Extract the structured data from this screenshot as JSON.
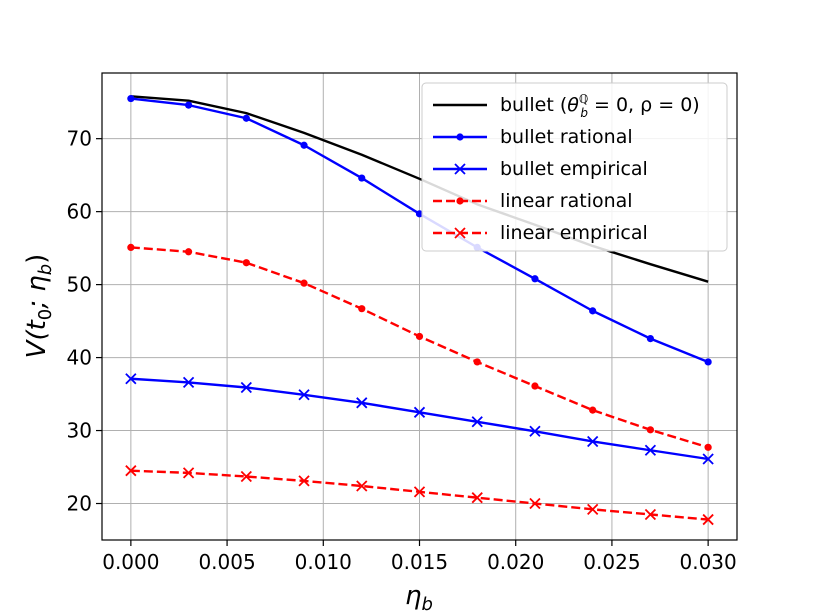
{
  "chart_data": {
    "type": "line",
    "title": "",
    "xlabel": "η",
    "xlabel_sub": "b",
    "ylabel": "V(t",
    "ylabel_sub1": "0",
    "ylabel_mid": "; η",
    "ylabel_sub2": "b",
    "ylabel_end": ")",
    "xlim": [
      -0.0015,
      0.0315
    ],
    "ylim": [
      15,
      79
    ],
    "xticks": [
      0.0,
      0.005,
      0.01,
      0.015,
      0.02,
      0.025,
      0.03
    ],
    "xtick_labels": [
      "0.000",
      "0.005",
      "0.010",
      "0.015",
      "0.020",
      "0.025",
      "0.030"
    ],
    "yticks": [
      20,
      30,
      40,
      50,
      60,
      70
    ],
    "ytick_labels": [
      "20",
      "30",
      "40",
      "50",
      "60",
      "70"
    ],
    "grid": true,
    "legend_position": "top-right",
    "x": [
      0.0,
      0.003,
      0.006,
      0.009,
      0.012,
      0.015,
      0.018,
      0.021,
      0.024,
      0.027,
      0.03
    ],
    "series": [
      {
        "name": "bullet (θ_b^Q = 0, ρ = 0)",
        "legend_text": "bullet (",
        "legend_theta": "θ",
        "legend_theta_sub": "b",
        "legend_theta_sup": "ℚ",
        "legend_tail": " = 0, ρ = 0)",
        "color": "#000000",
        "linestyle": "solid",
        "marker": "none",
        "values": [
          75.8,
          75.2,
          73.5,
          70.8,
          67.8,
          64.5,
          61.0,
          58.2,
          55.3,
          52.8,
          50.4
        ]
      },
      {
        "name": "bullet rational",
        "legend_text": "bullet rational",
        "color": "#0000ff",
        "linestyle": "solid",
        "marker": "dot",
        "values": [
          75.5,
          74.6,
          72.8,
          69.1,
          64.6,
          59.7,
          55.1,
          50.8,
          46.4,
          42.6,
          39.4
        ]
      },
      {
        "name": "bullet empirical",
        "legend_text": "bullet empirical",
        "color": "#0000ff",
        "linestyle": "solid",
        "marker": "x",
        "values": [
          37.1,
          36.6,
          35.9,
          34.9,
          33.8,
          32.5,
          31.2,
          29.9,
          28.5,
          27.3,
          26.1
        ]
      },
      {
        "name": "linear rational",
        "legend_text": "linear rational",
        "color": "#ff0000",
        "linestyle": "dashed",
        "marker": "dot",
        "values": [
          55.1,
          54.5,
          53.0,
          50.2,
          46.7,
          42.9,
          39.4,
          36.1,
          32.8,
          30.1,
          27.7
        ]
      },
      {
        "name": "linear empirical",
        "legend_text": "linear empirical",
        "color": "#ff0000",
        "linestyle": "dashed",
        "marker": "x",
        "values": [
          24.5,
          24.2,
          23.7,
          23.1,
          22.4,
          21.6,
          20.8,
          20.0,
          19.2,
          18.5,
          17.8
        ]
      }
    ]
  }
}
